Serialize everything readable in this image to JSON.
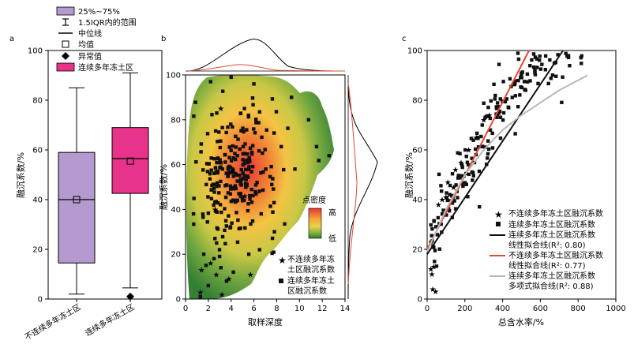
{
  "colors": {
    "purple": "#b59ad0",
    "pink": "#e8338a",
    "red_star": "#e8423a",
    "black": "#111111",
    "gray_fit": "#b8b8b8",
    "red_fit": "#e24a33"
  },
  "panel_a": {
    "letter": "a",
    "ylabel": "融沉系数/%",
    "legend": [
      {
        "label": "25%~75%",
        "icon": "purple-box-icon"
      },
      {
        "label": "1.5IQR内的范围",
        "icon": "whisker-icon"
      },
      {
        "label": "中位线",
        "icon": "median-line-icon"
      },
      {
        "label": "均值",
        "icon": "mean-square-icon"
      },
      {
        "label": "异常值",
        "icon": "outlier-diamond-icon"
      },
      {
        "label": "连续多年冻土区",
        "icon": "pink-box-icon"
      }
    ]
  },
  "panel_b": {
    "letter": "b",
    "xlabel": "取样深度",
    "ylabel": "融沉系数/%",
    "colorbar_title": "点密度",
    "colorbar_high": "高",
    "colorbar_low": "低",
    "legend": [
      {
        "label": "不连续多年冻\n土区融沉系数",
        "icon": "red-star-icon"
      },
      {
        "label": "连续多年冻土\n区融沉系数",
        "icon": "black-square-icon"
      }
    ]
  },
  "panel_c": {
    "letter": "c",
    "xlabel": "总含水率/%",
    "ylabel": "融沉系数/%",
    "legend": [
      {
        "label": "不连续多年冻土区融沉系数",
        "icon": "red-star-icon"
      },
      {
        "label": "连续多年冻土区融沉系数",
        "icon": "black-square-icon"
      },
      {
        "label": "连续多年冻土区融沉系数\n线性拟合线(R²: 0.80)",
        "icon": "black-line-icon"
      },
      {
        "label": "不连续多年冻土区融沉系数\n线性拟合线(R²: 0.77)",
        "icon": "red-line-icon"
      },
      {
        "label": "连续多年冻土区融沉系数\n多项式拟合线(R²: 0.88)",
        "icon": "gray-line-icon"
      }
    ]
  },
  "chart_data": [
    {
      "type": "box",
      "categories": [
        "不连续多年冻土区",
        "连续多年冻土区"
      ],
      "ylim": [
        0,
        100
      ],
      "yticks": [
        0,
        20,
        40,
        60,
        80,
        100
      ],
      "boxes": [
        {
          "name": "不连续多年冻土区",
          "whisker_low": 2,
          "q1": 14.5,
          "median": 40,
          "mean": 40,
          "q3": 59,
          "whisker_high": 85,
          "outliers": []
        },
        {
          "name": "连续多年冻土区",
          "whisker_low": 4.5,
          "q1": 42.5,
          "median": 56.5,
          "mean": 55.5,
          "q3": 69,
          "whisker_high": 91,
          "outliers": [
            1
          ]
        }
      ]
    },
    {
      "type": "scatter",
      "xlim": [
        0,
        14
      ],
      "ylim": [
        0,
        100
      ],
      "xticks": [
        0,
        2,
        4,
        6,
        8,
        10,
        12,
        14
      ],
      "yticks": [
        0,
        20,
        40,
        60,
        80,
        100
      ],
      "density_background": true,
      "series": [
        {
          "name": "不连续多年冻土区融沉系数",
          "marker": "star",
          "points": [
            [
              3.1,
              85
            ],
            [
              5.2,
              46
            ],
            [
              6.2,
              47
            ],
            [
              2.2,
              16
            ],
            [
              1.4,
              13
            ],
            [
              2.7,
              11
            ],
            [
              3.8,
              9
            ],
            [
              5.7,
              11
            ],
            [
              1.3,
              3
            ],
            [
              3.2,
              2
            ],
            [
              2.6,
              40
            ],
            [
              4.1,
              57
            ]
          ]
        },
        {
          "name": "连续多年冻土区融沉系数",
          "marker": "square",
          "points": []
        }
      ]
    },
    {
      "type": "scatter",
      "xlim": [
        0,
        1000
      ],
      "ylim": [
        0,
        100
      ],
      "xticks": [
        0,
        200,
        400,
        600,
        800,
        1000
      ],
      "yticks": [
        0,
        20,
        40,
        60,
        80,
        100
      ],
      "series": [
        {
          "name": "不连续多年冻土区融沉系数",
          "marker": "star",
          "points": [
            [
              20,
              12
            ],
            [
              25,
              10
            ],
            [
              35,
              13
            ],
            [
              30,
              4
            ],
            [
              45,
              3
            ],
            [
              60,
              38
            ],
            [
              80,
              40
            ],
            [
              110,
              47
            ],
            [
              140,
              45
            ],
            [
              180,
              55
            ],
            [
              220,
              60
            ],
            [
              260,
              65
            ],
            [
              300,
              72
            ],
            [
              330,
              74
            ],
            [
              380,
              75
            ],
            [
              150,
              52
            ],
            [
              100,
              41
            ]
          ]
        },
        {
          "name": "连续多年冻土区融沉系数",
          "marker": "square",
          "points": []
        }
      ],
      "fits": [
        {
          "name": "连续多年冻土区融沉系数线性拟合线",
          "r2": 0.8,
          "x": [
            0,
            720
          ],
          "y": [
            18,
            100
          ]
        },
        {
          "name": "不连续多年冻土区融沉系数线性拟合线",
          "r2": 0.77,
          "x": [
            0,
            540
          ],
          "y": [
            20,
            100
          ]
        },
        {
          "name": "连续多年冻土区融沉系数多项式拟合线",
          "r2": 0.88,
          "x": [
            0,
            100,
            200,
            300,
            400,
            500,
            600,
            700,
            800,
            850
          ],
          "y": [
            19,
            36,
            50,
            60,
            68,
            74,
            79,
            84,
            88,
            90
          ]
        }
      ]
    }
  ]
}
